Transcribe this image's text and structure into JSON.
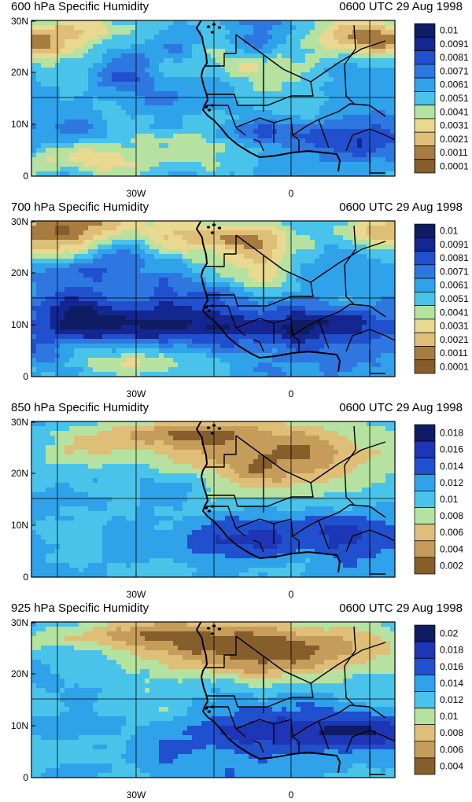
{
  "palette": [
    "#865e2c",
    "#a77c40",
    "#c59c5a",
    "#dfbf78",
    "#e8d890",
    "#b5e2a0",
    "#7fd7c8",
    "#49c3ea",
    "#2fa2ea",
    "#2f77e0",
    "#2150cf",
    "#1e35b5",
    "#142690",
    "#0f1c63"
  ],
  "panels": [
    {
      "title": "600 hPa Specific Humidity",
      "time": "0600 UTC 29 Aug 1998",
      "y_ticks": [
        "30N",
        "20N",
        "10N",
        "0"
      ],
      "x_ticks": [
        "30W",
        "0"
      ],
      "colorbar": [
        "0.01",
        "0.0091",
        "0.0081",
        "0.0071",
        "0.0061",
        "0.0051",
        "0.0041",
        "0.0031",
        "0.0021",
        "0.0011",
        "0.0001"
      ],
      "field": {
        "base": 8.0,
        "noise": 1.2,
        "seed": 11,
        "blobs": [
          [
            0.02,
            0.12,
            0.22,
            0.14,
            -6
          ],
          [
            0.93,
            0.1,
            0.16,
            0.14,
            -6
          ],
          [
            0.6,
            0.3,
            0.15,
            0.1,
            -3
          ],
          [
            0.4,
            0.8,
            0.18,
            0.12,
            -3
          ],
          [
            0.15,
            0.9,
            0.2,
            0.1,
            -4
          ],
          [
            0.65,
            0.72,
            0.25,
            0.08,
            2
          ],
          [
            0.85,
            0.78,
            0.18,
            0.12,
            2
          ],
          [
            0.25,
            0.35,
            0.12,
            0.15,
            1.5
          ]
        ]
      }
    },
    {
      "title": "700 hPa Specific Humidity",
      "time": "0600 UTC 29 Aug 1998",
      "y_ticks": [
        "30N",
        "20N",
        "10N",
        "0"
      ],
      "x_ticks": [
        "30W",
        "0"
      ],
      "colorbar": [
        "0.01",
        "0.0091",
        "0.0081",
        "0.0071",
        "0.0061",
        "0.0051",
        "0.0041",
        "0.0031",
        "0.0021",
        "0.0011",
        "0.0001"
      ],
      "field": {
        "base": 9.0,
        "noise": 1.2,
        "seed": 23,
        "blobs": [
          [
            0.05,
            0.05,
            0.28,
            0.18,
            -7
          ],
          [
            0.55,
            0.12,
            0.22,
            0.15,
            -6
          ],
          [
            0.98,
            0.08,
            0.1,
            0.12,
            -6
          ],
          [
            0.65,
            0.35,
            0.1,
            0.12,
            -4
          ],
          [
            0.3,
            0.92,
            0.18,
            0.12,
            -4
          ],
          [
            0.6,
            0.68,
            0.45,
            0.12,
            3.5
          ],
          [
            0.15,
            0.6,
            0.2,
            0.15,
            3
          ],
          [
            0.22,
            0.25,
            0.1,
            0.18,
            2.5
          ]
        ]
      }
    },
    {
      "title": "850 hPa Specific Humidity",
      "time": "0600 UTC 29 Aug 1998",
      "y_ticks": [
        "30N",
        "20N",
        "10N",
        "0"
      ],
      "x_ticks": [
        "30W",
        "0"
      ],
      "colorbar": [
        "0.018",
        "0.016",
        "0.014",
        "0.012",
        "0.01",
        "0.008",
        "0.006",
        "0.004",
        "0.002"
      ],
      "field": {
        "base": 7.6,
        "noise": 1.0,
        "seed": 37,
        "blobs": [
          [
            0.68,
            0.22,
            0.32,
            0.22,
            -6
          ],
          [
            0.35,
            0.07,
            0.22,
            0.08,
            -4.5
          ],
          [
            0.15,
            0.18,
            0.15,
            0.1,
            -2
          ],
          [
            0.6,
            0.72,
            0.22,
            0.15,
            3.5
          ],
          [
            0.88,
            0.75,
            0.15,
            0.15,
            3
          ],
          [
            0.4,
            0.42,
            0.12,
            0.08,
            1.5
          ]
        ]
      }
    },
    {
      "title": "925 hPa Specific Humidity",
      "time": "0600 UTC 29 Aug 1998",
      "y_ticks": [
        "30N",
        "20N",
        "10N",
        "0"
      ],
      "x_ticks": [
        "30W",
        "0"
      ],
      "colorbar": [
        "0.02",
        "0.018",
        "0.016",
        "0.014",
        "0.012",
        "0.01",
        "0.008",
        "0.006",
        "0.004"
      ],
      "field": {
        "base": 8.0,
        "noise": 1.0,
        "seed": 51,
        "blobs": [
          [
            0.65,
            0.18,
            0.38,
            0.2,
            -7
          ],
          [
            0.3,
            0.07,
            0.18,
            0.08,
            -4
          ],
          [
            0.06,
            0.1,
            0.12,
            0.1,
            -2
          ],
          [
            0.62,
            0.72,
            0.25,
            0.15,
            3.5
          ],
          [
            0.9,
            0.72,
            0.15,
            0.12,
            3
          ],
          [
            0.35,
            0.55,
            0.1,
            0.1,
            -1.5
          ]
        ]
      }
    }
  ]
}
